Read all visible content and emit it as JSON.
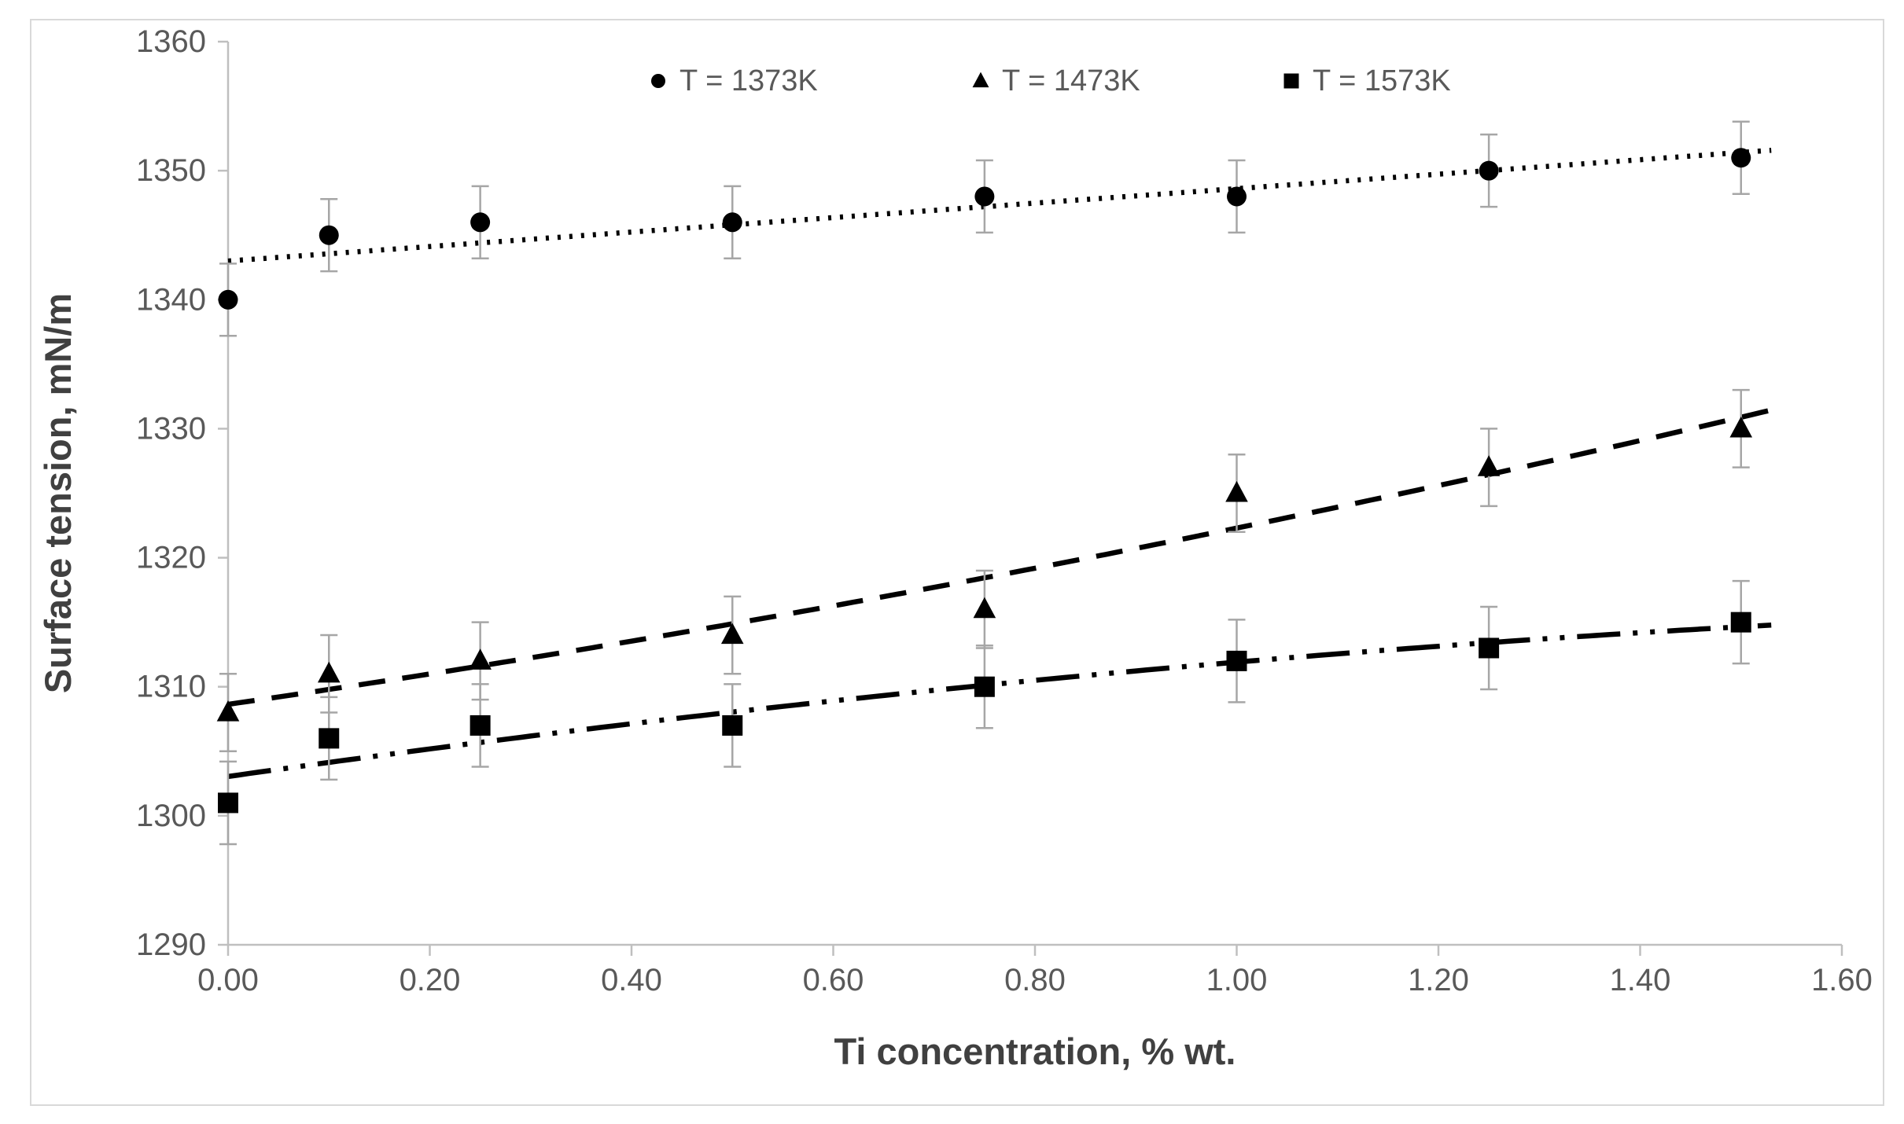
{
  "chart": {
    "background_color": "#ffffff",
    "border_color": "#d9d9d9",
    "axis_color": "#bfbfbf",
    "tick_label_color": "#595959",
    "title_color": "#404040",
    "series_color": "#000000",
    "error_bar_color": "#a6a6a6"
  },
  "chart_data": {
    "type": "scatter",
    "title": "",
    "xlabel": "Ti concentration, % wt.",
    "ylabel": "Surface tension, mN/m",
    "xlim": [
      0,
      1.6
    ],
    "ylim": [
      1290,
      1360
    ],
    "grid": false,
    "legend_position": "top-center",
    "x_tick_labels": [
      "0.00",
      "0.20",
      "0.40",
      "0.60",
      "0.80",
      "1.00",
      "1.20",
      "1.40",
      "1.60"
    ],
    "x_tick_values": [
      0,
      0.2,
      0.4,
      0.6,
      0.8,
      1.0,
      1.2,
      1.4,
      1.6
    ],
    "y_tick_labels": [
      "1290",
      "1300",
      "1310",
      "1320",
      "1330",
      "1340",
      "1350",
      "1360"
    ],
    "y_tick_values": [
      1290,
      1300,
      1310,
      1320,
      1330,
      1340,
      1350,
      1360
    ],
    "x": [
      0.0,
      0.1,
      0.25,
      0.5,
      0.75,
      1.0,
      1.25,
      1.5
    ],
    "series": [
      {
        "name": "T = 1373K",
        "marker": "circle",
        "line_style": "dotted",
        "trend": "linear",
        "values": [
          1340,
          1345,
          1346,
          1346,
          1348,
          1348,
          1350,
          1351
        ],
        "error": 2.8
      },
      {
        "name": "T = 1473K",
        "marker": "triangle",
        "line_style": "dashed",
        "trend": "quadratic",
        "values": [
          1308,
          1311,
          1312,
          1314,
          1316,
          1325,
          1327,
          1330
        ],
        "error": 3.0
      },
      {
        "name": "T = 1573K",
        "marker": "square",
        "line_style": "dash-dot-dot",
        "trend": "quadratic",
        "values": [
          1301,
          1306,
          1307,
          1307,
          1310,
          1312,
          1313,
          1315
        ],
        "error": 3.2
      }
    ],
    "trendline_x_extent": [
      0,
      1.53
    ]
  }
}
